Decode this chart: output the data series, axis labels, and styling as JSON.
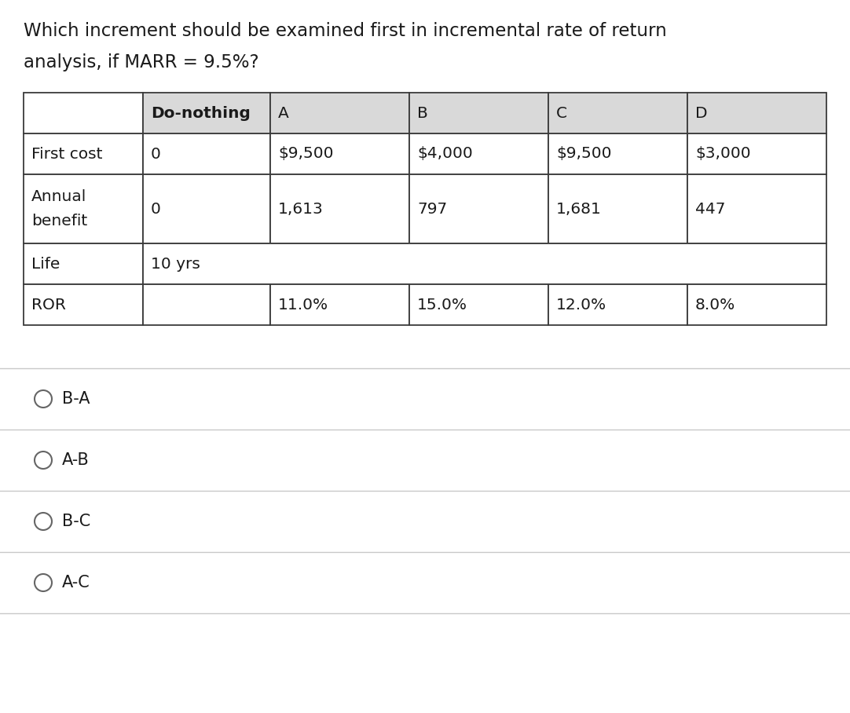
{
  "title_line1": "Which increment should be examined first in incremental rate of return",
  "title_line2": "analysis, if MARR = 9.5%?",
  "title_fontsize": 16.5,
  "bg_color": "#ffffff",
  "table": {
    "headers": [
      "",
      "Do-nothing",
      "A",
      "B",
      "C",
      "D"
    ],
    "rows": [
      [
        "First cost",
        "0",
        "$9,500",
        "$4,000",
        "$9,500",
        "$3,000"
      ],
      [
        "Annual\nbenefit",
        "0",
        "1,613",
        "797",
        "1,681",
        "447"
      ],
      [
        "Life",
        "10 yrs",
        "",
        "",
        "",
        ""
      ],
      [
        "ROR",
        "",
        "11.0%",
        "15.0%",
        "12.0%",
        "8.0%"
      ]
    ],
    "header_bg": "#d9d9d9",
    "cell_bg": "#ffffff",
    "border_color": "#3a3a3a",
    "text_color": "#1a1a1a",
    "font_size": 14.5
  },
  "options": [
    "B-A",
    "A-B",
    "B-C",
    "A-C"
  ],
  "options_fontsize": 15,
  "divider_color": "#c8c8c8",
  "circle_color": "#666666"
}
